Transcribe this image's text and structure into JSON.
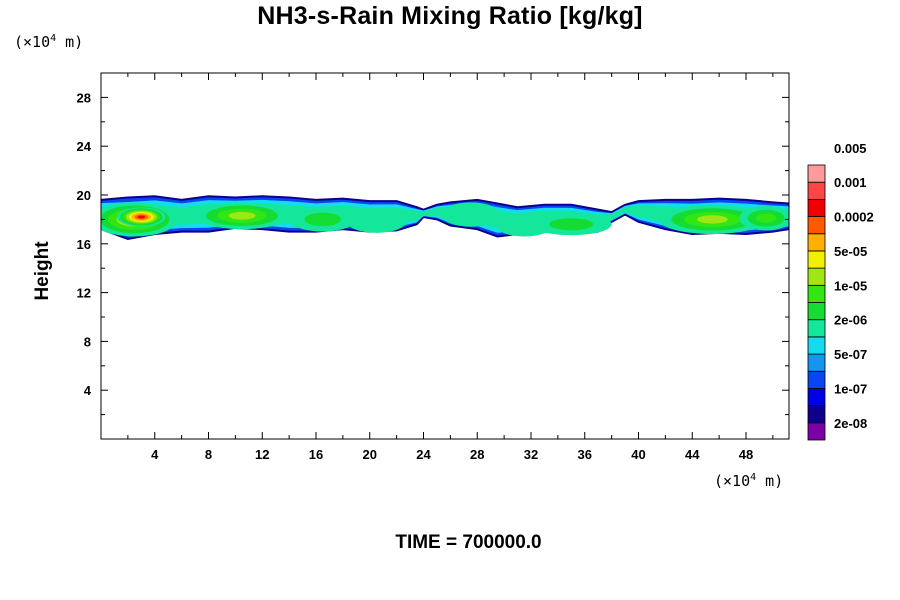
{
  "chart_data": {
    "type": "heatmap",
    "title": "NH3-s-Rain Mixing Ratio [kg/kg]",
    "ylabel": "Height",
    "xlabel": "",
    "x_unit_label": "(×10⁴ m)",
    "y_unit_label": "(×10⁴ m)",
    "footer": "TIME = 700000.0",
    "xlim": [
      0,
      51.2
    ],
    "ylim": [
      0,
      30
    ],
    "x_ticks": [
      4,
      8,
      12,
      16,
      20,
      24,
      28,
      32,
      36,
      40,
      44,
      48
    ],
    "y_ticks": [
      4,
      8,
      12,
      16,
      20,
      24,
      28
    ],
    "x_tick_labels": [
      "4",
      "8",
      "12",
      "16",
      "20",
      "24",
      "28",
      "32",
      "36",
      "40",
      "44",
      "48"
    ],
    "y_tick_labels": [
      "4",
      "8",
      "12",
      "16",
      "20",
      "24",
      "28"
    ],
    "colorbar": {
      "colors": [
        "#7b00a8",
        "#0e008f",
        "#0000e6",
        "#0a46f0",
        "#1496f0",
        "#14dcf0",
        "#14e69b",
        "#14dc32",
        "#32e614",
        "#a0e614",
        "#f0f000",
        "#ffb000",
        "#ff5a00",
        "#f00000",
        "#ff4646",
        "#ff9b9b"
      ],
      "labels": [
        "2e-08",
        "1e-07",
        "5e-07",
        "2e-06",
        "1e-05",
        "5e-05",
        "0.0002",
        "0.001",
        "0.005"
      ]
    },
    "layer": {
      "description": "Thin cloud layer of mixing ratio between ~16.5 and ~20 (x10^4 m) spanning full domain; maxima near x=3 (red) and x=10, 46 (yellow-green)",
      "blobs": [
        {
          "x": 2.5,
          "y": 18.0,
          "rx": 3.2,
          "ry": 1.4,
          "level": 10
        },
        {
          "x": 3.0,
          "y": 18.2,
          "rx": 1.8,
          "ry": 0.8,
          "level": 13
        },
        {
          "x": 10.5,
          "y": 18.3,
          "rx": 3.5,
          "ry": 1.1,
          "level": 9
        },
        {
          "x": 16.5,
          "y": 18.0,
          "rx": 2.5,
          "ry": 1.0,
          "level": 7
        },
        {
          "x": 20.5,
          "y": 17.8,
          "rx": 2.2,
          "ry": 0.9,
          "level": 6
        },
        {
          "x": 27.5,
          "y": 18.4,
          "rx": 2.2,
          "ry": 1.0,
          "level": 6
        },
        {
          "x": 31.5,
          "y": 17.4,
          "rx": 2.0,
          "ry": 0.8,
          "level": 6
        },
        {
          "x": 35.0,
          "y": 17.6,
          "rx": 3.0,
          "ry": 0.9,
          "level": 7
        },
        {
          "x": 45.5,
          "y": 18.0,
          "rx": 4.0,
          "ry": 1.2,
          "level": 9
        },
        {
          "x": 49.5,
          "y": 18.1,
          "rx": 2.0,
          "ry": 1.0,
          "level": 8
        }
      ]
    }
  }
}
